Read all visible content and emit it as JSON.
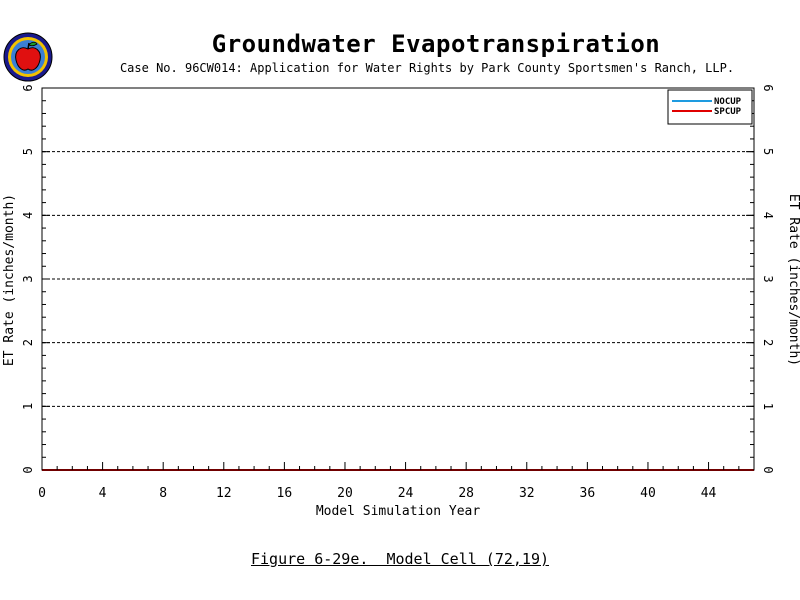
{
  "header": {
    "title": "Groundwater Evapotranspiration",
    "subtitle": "Case No. 96CW014: Application for Water Rights by Park County Sportsmen's Ranch, LLP."
  },
  "caption": "Figure 6-29e.  Model Cell (72,19)",
  "logo": {
    "icon": "apple-seal-icon"
  },
  "chart_data": {
    "type": "line",
    "title": "Groundwater Evapotranspiration",
    "xlabel": "Model Simulation Year",
    "ylabel": "ET Rate (inches/month)",
    "xlim": [
      0,
      47
    ],
    "ylim": [
      0,
      6
    ],
    "xticks": [
      0,
      4,
      8,
      12,
      16,
      20,
      24,
      28,
      32,
      36,
      40,
      44
    ],
    "yticks": [
      0,
      1,
      2,
      3,
      4,
      5,
      6
    ],
    "grid": "horizontal dashed",
    "legend_position": "top-right",
    "series": [
      {
        "name": "NOCUP",
        "color": "#1e9be0",
        "x": [
          0,
          47
        ],
        "values": [
          0,
          0
        ]
      },
      {
        "name": "SPCUP",
        "color": "#e00000",
        "x": [
          0,
          47
        ],
        "values": [
          0,
          0
        ]
      }
    ]
  }
}
